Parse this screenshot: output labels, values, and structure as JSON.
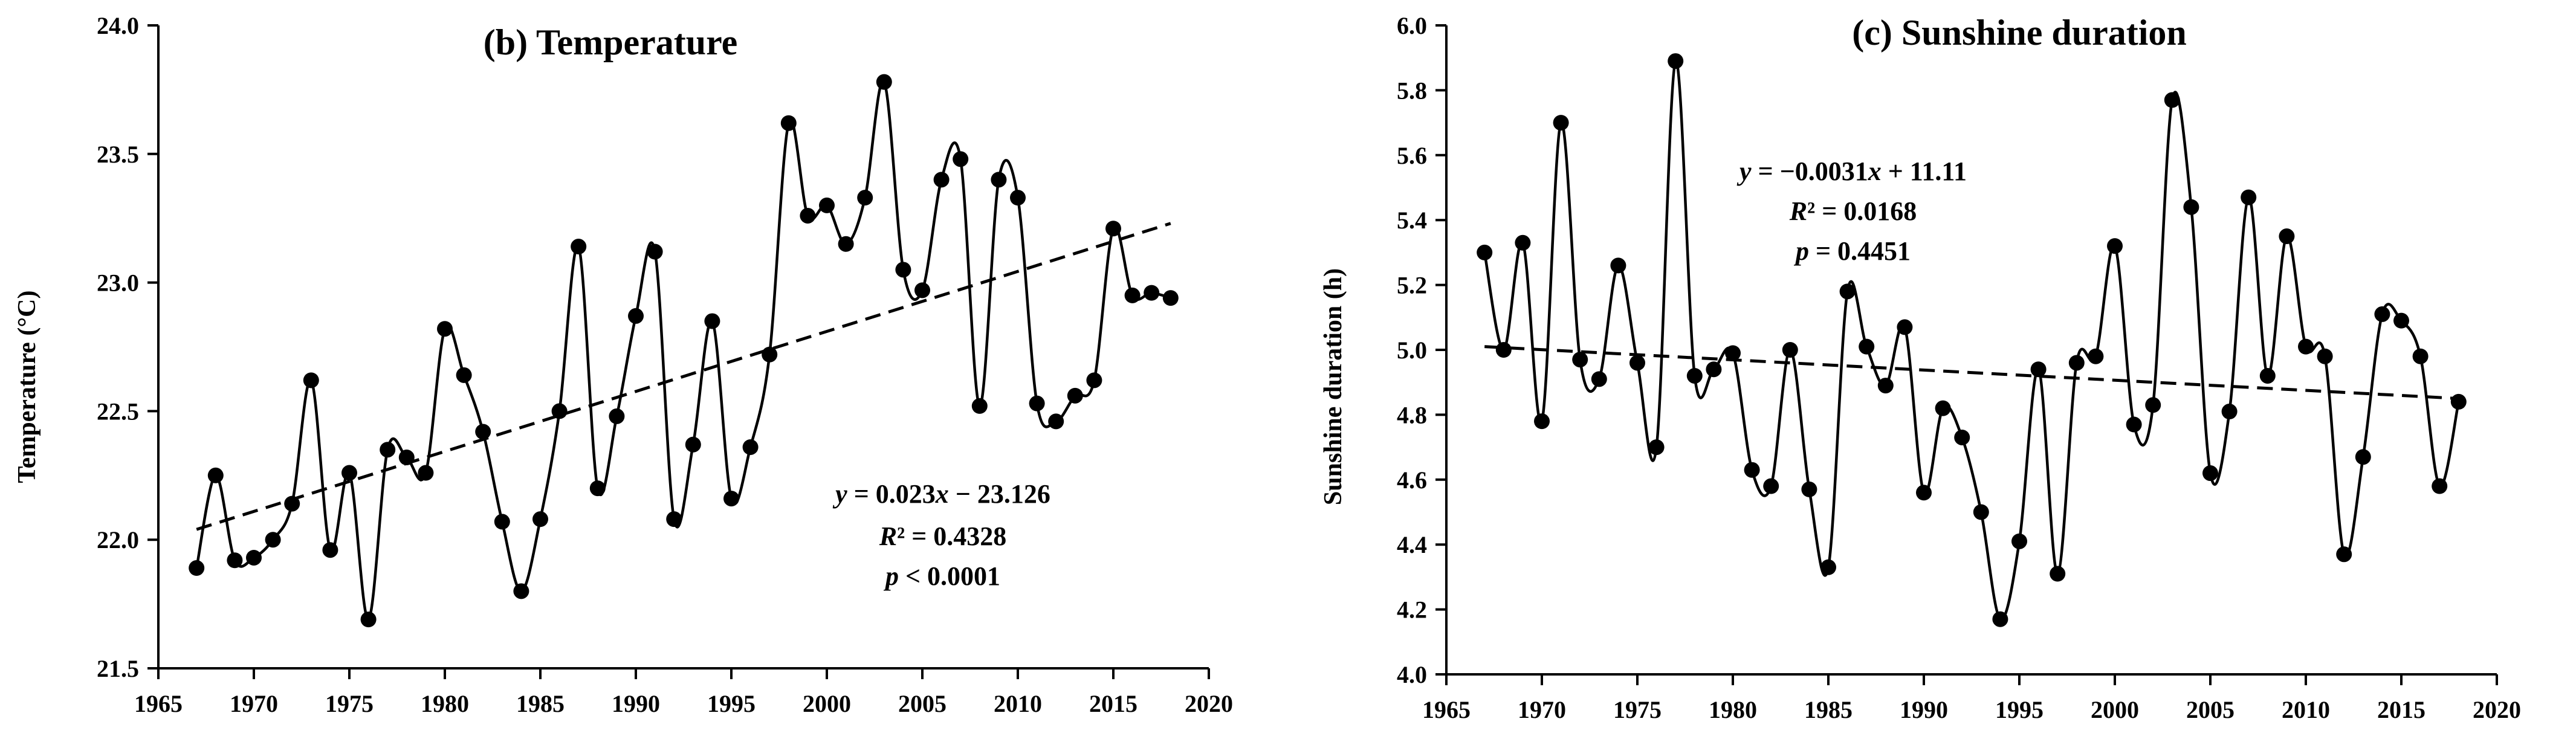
{
  "chart_data": [
    {
      "type": "line",
      "title": "(b) Temperature",
      "xlabel": "",
      "ylabel": "Temperature (°C)",
      "xlim": [
        1965,
        2020
      ],
      "ylim": [
        21.5,
        24.0
      ],
      "x_ticks": [
        1965,
        1970,
        1975,
        1980,
        1985,
        1990,
        1995,
        2000,
        2005,
        2010,
        2015,
        2020
      ],
      "y_ticks": [
        "21.5",
        "22.0",
        "22.5",
        "23.0",
        "23.5",
        "24.0"
      ],
      "grid": false,
      "series": [
        {
          "name": "Temperature",
          "x": [
            1967,
            1968,
            1969,
            1970,
            1971,
            1972,
            1973,
            1974,
            1975,
            1976,
            1977,
            1978,
            1979,
            1980,
            1981,
            1982,
            1983,
            1984,
            1985,
            1986,
            1987,
            1988,
            1989,
            1990,
            1991,
            1992,
            1993,
            1994,
            1995,
            1996,
            1997,
            1998,
            1999,
            2000,
            2001,
            2002,
            2003,
            2004,
            2005,
            2006,
            2007,
            2008,
            2009,
            2010,
            2011,
            2012,
            2013,
            2014,
            2015,
            2016,
            2017,
            2018
          ],
          "values": [
            21.89,
            22.25,
            21.92,
            21.93,
            22.0,
            22.14,
            22.62,
            21.96,
            22.26,
            21.69,
            22.35,
            22.32,
            22.26,
            22.82,
            22.64,
            22.42,
            22.07,
            21.8,
            22.08,
            22.5,
            23.14,
            22.2,
            22.48,
            22.87,
            23.12,
            22.08,
            22.37,
            22.85,
            22.16,
            22.36,
            22.72,
            23.62,
            23.26,
            23.3,
            23.15,
            23.33,
            23.78,
            23.05,
            22.97,
            23.4,
            23.48,
            22.52,
            23.4,
            23.33,
            22.53,
            22.46,
            22.56,
            22.62,
            23.21,
            22.95,
            22.96,
            22.94
          ]
        },
        {
          "name": "Linear trend",
          "style": "dashed",
          "x": [
            1967,
            2018
          ],
          "values": [
            22.04,
            23.23
          ]
        }
      ],
      "annotation": {
        "equation": "y = 0.023x − 23.126",
        "eq_y": "y",
        "eq_x": "x",
        "eq_lhs_rest": " = 0.023",
        "eq_rest": " − 23.126",
        "r2": "R² = 0.4328",
        "p": "p",
        "p_rest": " < 0.0001"
      }
    },
    {
      "type": "line",
      "title": "(c) Sunshine duration",
      "xlabel": "",
      "ylabel": "Sunshine duration (h)",
      "xlim": [
        1965,
        2020
      ],
      "ylim": [
        4.0,
        6.0
      ],
      "x_ticks": [
        1965,
        1970,
        1975,
        1980,
        1985,
        1990,
        1995,
        2000,
        2005,
        2010,
        2015,
        2020
      ],
      "y_ticks": [
        "4.0",
        "4.2",
        "4.4",
        "4.6",
        "4.8",
        "5.0",
        "5.2",
        "5.4",
        "5.6",
        "5.8",
        "6.0"
      ],
      "grid": false,
      "series": [
        {
          "name": "Sunshine duration",
          "x": [
            1967,
            1968,
            1969,
            1970,
            1971,
            1972,
            1973,
            1974,
            1975,
            1976,
            1977,
            1978,
            1979,
            1980,
            1981,
            1982,
            1983,
            1984,
            1985,
            1986,
            1987,
            1988,
            1989,
            1990,
            1991,
            1992,
            1993,
            1994,
            1995,
            1996,
            1997,
            1998,
            1999,
            2000,
            2001,
            2002,
            2003,
            2004,
            2005,
            2006,
            2007,
            2008,
            2009,
            2010,
            2011,
            2012,
            2013,
            2014,
            2015,
            2016,
            2017,
            2018
          ],
          "values": [
            5.3,
            5.0,
            5.33,
            4.78,
            5.7,
            4.97,
            4.91,
            5.26,
            4.96,
            4.7,
            5.89,
            4.92,
            4.94,
            4.99,
            4.63,
            4.58,
            5.0,
            4.57,
            4.33,
            5.18,
            5.01,
            4.89,
            5.07,
            4.56,
            4.82,
            4.73,
            4.5,
            4.17,
            4.41,
            4.94,
            4.31,
            4.96,
            4.98,
            5.32,
            4.77,
            4.83,
            5.77,
            5.44,
            4.62,
            4.81,
            5.47,
            4.92,
            5.35,
            5.01,
            4.98,
            4.37,
            4.67,
            5.11,
            5.09,
            4.98,
            4.58,
            4.84
          ]
        },
        {
          "name": "Linear trend",
          "style": "dashed",
          "x": [
            1967,
            2018
          ],
          "values": [
            5.01,
            4.85
          ]
        }
      ],
      "annotation": {
        "equation": "y = −0.0031x + 11.11",
        "eq_y": "y",
        "eq_x": "x",
        "eq_lhs_rest": " = −0.0031",
        "eq_rest": " + 11.11",
        "r2": "R² = 0.0168",
        "p": "p",
        "p_rest": " = 0.4451"
      }
    }
  ]
}
